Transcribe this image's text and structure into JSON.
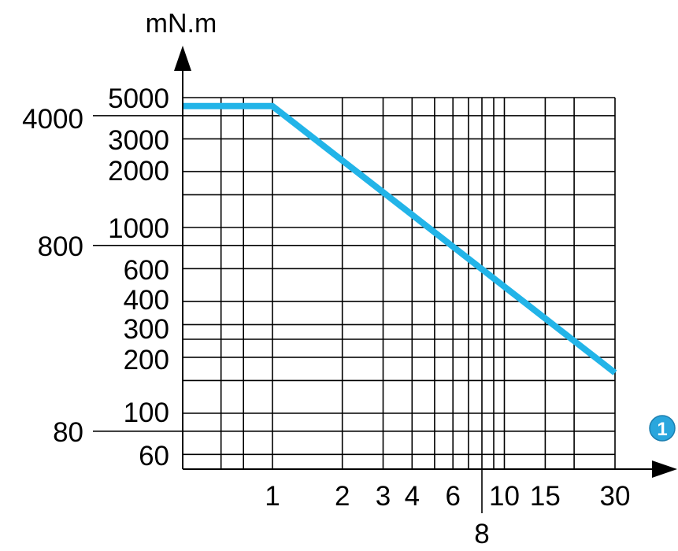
{
  "chart_data": {
    "type": "line",
    "x_scale": "log",
    "y_scale": "log",
    "ylabel": "mN.m",
    "x_marker": "1",
    "x_tick_labels": [
      "1",
      "2",
      "3",
      "4",
      "6",
      "8",
      "10",
      "15",
      "30"
    ],
    "x_ticks": [
      1,
      2,
      3,
      4,
      6,
      8,
      10,
      15,
      30
    ],
    "y_tick_labels": [
      "5000",
      "4000",
      "3000",
      "2000",
      "1000",
      "800",
      "600",
      "400",
      "300",
      "200",
      "100",
      "80",
      "60"
    ],
    "y_ticks": [
      5000,
      4000,
      3000,
      2000,
      1000,
      800,
      600,
      400,
      300,
      200,
      100,
      80,
      60
    ],
    "x_grid": [
      0.6,
      0.75,
      1,
      2,
      3,
      4,
      5,
      6,
      7,
      8,
      9,
      10,
      15,
      20,
      30
    ],
    "y_grid": [
      5000,
      4000,
      3000,
      2000,
      1500,
      1000,
      800,
      600,
      400,
      300,
      250,
      200,
      150,
      100,
      80,
      60
    ],
    "xlim": [
      0.41,
      30
    ],
    "ylim": [
      50,
      5000
    ],
    "grid": true,
    "series": [
      {
        "color": "#22b4e8",
        "points": [
          [
            0.41,
            4500
          ],
          [
            1,
            4500
          ],
          [
            30,
            165
          ]
        ]
      }
    ],
    "colors": {
      "series": "#22b4e8",
      "marker_fill": "#2aa6dd",
      "grid": "#000000"
    }
  }
}
